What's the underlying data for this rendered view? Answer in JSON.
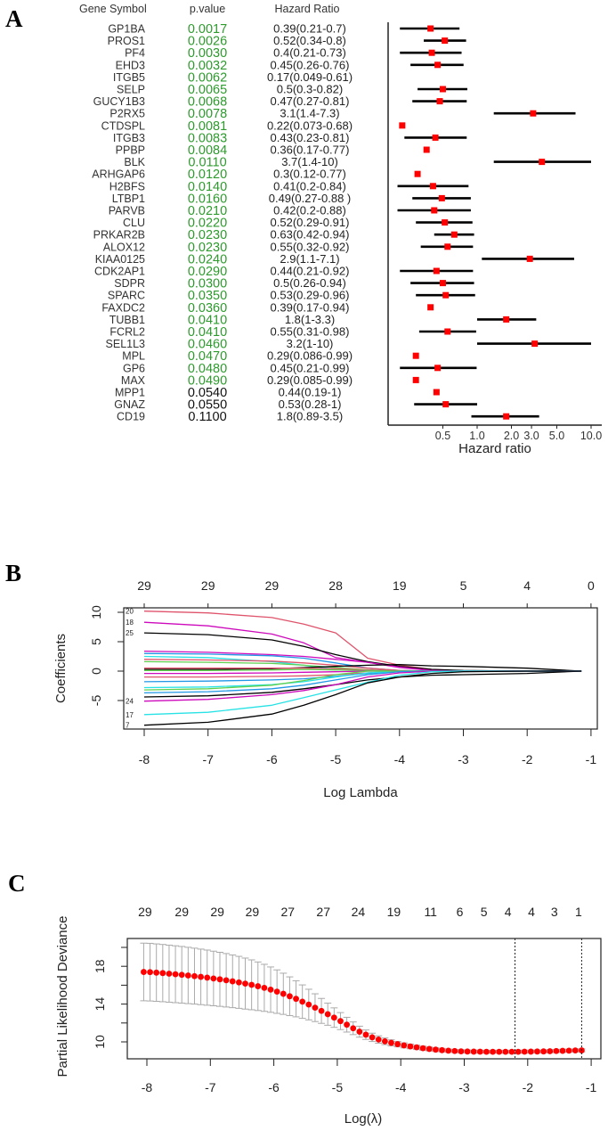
{
  "panels": {
    "a": "A",
    "b": "B",
    "c": "C"
  },
  "chart_data": [
    {
      "type": "forest",
      "panel": "A",
      "headers": {
        "gene": "Gene Symbol",
        "p": "p.value",
        "hr": "Hazard Ratio"
      },
      "xlabel": "Hazard ratio",
      "xscale": "log",
      "xticks": [
        "0.5",
        "1.0",
        "2.0",
        "3.0",
        "5.0",
        "10.0"
      ],
      "significant_color": "#2e9a2e",
      "marker_color": "#ff0000",
      "rows": [
        {
          "gene": "GP1BA",
          "p": "0.0017",
          "hr_text": "0.39(0.21-0.7)",
          "hr": 0.39,
          "lo": 0.21,
          "hi": 0.7
        },
        {
          "gene": "PROS1",
          "p": "0.0026",
          "hr_text": "0.52(0.34-0.8)",
          "hr": 0.52,
          "lo": 0.34,
          "hi": 0.8
        },
        {
          "gene": "PF4",
          "p": "0.0030",
          "hr_text": "0.4(0.21-0.73)",
          "hr": 0.4,
          "lo": 0.21,
          "hi": 0.73
        },
        {
          "gene": "EHD3",
          "p": "0.0032",
          "hr_text": "0.45(0.26-0.76)",
          "hr": 0.45,
          "lo": 0.26,
          "hi": 0.76
        },
        {
          "gene": "ITGB5",
          "p": "0.0062",
          "hr_text": "0.17(0.049-0.61)",
          "hr": 0.17,
          "lo": 0.049,
          "hi": 0.61
        },
        {
          "gene": "SELP",
          "p": "0.0065",
          "hr_text": "0.5(0.3-0.82)",
          "hr": 0.5,
          "lo": 0.3,
          "hi": 0.82
        },
        {
          "gene": "GUCY1B3",
          "p": "0.0068",
          "hr_text": "0.47(0.27-0.81)",
          "hr": 0.47,
          "lo": 0.27,
          "hi": 0.81
        },
        {
          "gene": "P2RX5",
          "p": "0.0078",
          "hr_text": "3.1(1.4-7.3)",
          "hr": 3.1,
          "lo": 1.4,
          "hi": 7.3
        },
        {
          "gene": "CTDSPL",
          "p": "0.0081",
          "hr_text": "0.22(0.073-0.68)",
          "hr": 0.22,
          "lo": 0.073,
          "hi": 0.68
        },
        {
          "gene": "ITGB3",
          "p": "0.0083",
          "hr_text": "0.43(0.23-0.81)",
          "hr": 0.43,
          "lo": 0.23,
          "hi": 0.81
        },
        {
          "gene": "PPBP",
          "p": "0.0084",
          "hr_text": "0.36(0.17-0.77)",
          "hr": 0.36,
          "lo": 0.17,
          "hi": 0.77
        },
        {
          "gene": "BLK",
          "p": "0.0110",
          "hr_text": "3.7(1.4-10)",
          "hr": 3.7,
          "lo": 1.4,
          "hi": 10
        },
        {
          "gene": "ARHGAP6",
          "p": "0.0120",
          "hr_text": "0.3(0.12-0.77)",
          "hr": 0.3,
          "lo": 0.12,
          "hi": 0.77
        },
        {
          "gene": "H2BFS",
          "p": "0.0140",
          "hr_text": "0.41(0.2-0.84)",
          "hr": 0.41,
          "lo": 0.2,
          "hi": 0.84
        },
        {
          "gene": "LTBP1",
          "p": "0.0160",
          "hr_text": "0.49(0.27-0.88 )",
          "hr": 0.49,
          "lo": 0.27,
          "hi": 0.88
        },
        {
          "gene": "PARVB",
          "p": "0.0210",
          "hr_text": "0.42(0.2-0.88)",
          "hr": 0.42,
          "lo": 0.2,
          "hi": 0.88
        },
        {
          "gene": "CLU",
          "p": "0.0220",
          "hr_text": "0.52(0.29-0.91)",
          "hr": 0.52,
          "lo": 0.29,
          "hi": 0.91
        },
        {
          "gene": "PRKAR2B",
          "p": "0.0230",
          "hr_text": "0.63(0.42-0.94)",
          "hr": 0.63,
          "lo": 0.42,
          "hi": 0.94
        },
        {
          "gene": "ALOX12",
          "p": "0.0230",
          "hr_text": "0.55(0.32-0.92)",
          "hr": 0.55,
          "lo": 0.32,
          "hi": 0.92
        },
        {
          "gene": "KIAA0125",
          "p": "0.0240",
          "hr_text": "2.9(1.1-7.1)",
          "hr": 2.9,
          "lo": 1.1,
          "hi": 7.1
        },
        {
          "gene": "CDK2AP1",
          "p": "0.0290",
          "hr_text": "0.44(0.21-0.92)",
          "hr": 0.44,
          "lo": 0.21,
          "hi": 0.92
        },
        {
          "gene": "SDPR",
          "p": "0.0300",
          "hr_text": "0.5(0.26-0.94)",
          "hr": 0.5,
          "lo": 0.26,
          "hi": 0.94
        },
        {
          "gene": "SPARC",
          "p": "0.0350",
          "hr_text": "0.53(0.29-0.96)",
          "hr": 0.53,
          "lo": 0.29,
          "hi": 0.96
        },
        {
          "gene": "FAXDC2",
          "p": "0.0360",
          "hr_text": "0.39(0.17-0.94)",
          "hr": 0.39,
          "lo": 0.17,
          "hi": 0.94
        },
        {
          "gene": "TUBB1",
          "p": "0.0410",
          "hr_text": "1.8(1-3.3)",
          "hr": 1.8,
          "lo": 1,
          "hi": 3.3
        },
        {
          "gene": "FCRL2",
          "p": "0.0410",
          "hr_text": "0.55(0.31-0.98)",
          "hr": 0.55,
          "lo": 0.31,
          "hi": 0.98
        },
        {
          "gene": "SEL1L3",
          "p": "0.0460",
          "hr_text": "3.2(1-10)",
          "hr": 3.2,
          "lo": 1,
          "hi": 10
        },
        {
          "gene": "MPL",
          "p": "0.0470",
          "hr_text": "0.29(0.086-0.99)",
          "hr": 0.29,
          "lo": 0.086,
          "hi": 0.99
        },
        {
          "gene": "GP6",
          "p": "0.0480",
          "hr_text": "0.45(0.21-0.99)",
          "hr": 0.45,
          "lo": 0.21,
          "hi": 0.99
        },
        {
          "gene": "MAX",
          "p": "0.0490",
          "hr_text": "0.29(0.085-0.99)",
          "hr": 0.29,
          "lo": 0.085,
          "hi": 0.99
        },
        {
          "gene": "MPP1",
          "p": "0.0540",
          "hr_text": "0.44(0.19-1)",
          "hr": 0.44,
          "lo": 0.19,
          "hi": 1
        },
        {
          "gene": "GNAZ",
          "p": "0.0550",
          "hr_text": "0.53(0.28-1)",
          "hr": 0.53,
          "lo": 0.28,
          "hi": 1
        },
        {
          "gene": "CD19",
          "p": "0.1100",
          "hr_text": "1.8(0.89-3.5)",
          "hr": 1.8,
          "lo": 0.89,
          "hi": 3.5
        }
      ]
    },
    {
      "type": "line",
      "panel": "B",
      "xlabel": "Log Lambda",
      "ylabel": "Coefficients",
      "xlim": [
        -8.3,
        -0.9
      ],
      "ylim": [
        -10.5,
        11
      ],
      "xticks": [
        "-8",
        "-7",
        "-6",
        "-5",
        "-4",
        "-3",
        "-2",
        "-1"
      ],
      "yticks": [
        "-5",
        "0",
        "5",
        "10"
      ],
      "top_axis": [
        "29",
        "29",
        "29",
        "28",
        "19",
        "5",
        "4",
        "0"
      ],
      "x": [
        -8,
        -7,
        -6,
        -5.5,
        -5,
        -4.5,
        -4,
        -3.5,
        -3,
        -2,
        -1.15
      ],
      "series": [
        {
          "label": "20",
          "color": "#df536b",
          "values": [
            10.2,
            9.9,
            9.1,
            8,
            6.5,
            2.2,
            1.0,
            0.3,
            0,
            0,
            0
          ]
        },
        {
          "label": "18",
          "color": "#cd0bbc",
          "values": [
            8.3,
            7.7,
            6.3,
            4.8,
            2.3,
            1.5,
            0.6,
            0.1,
            0,
            0,
            0
          ]
        },
        {
          "label": "25",
          "color": "#000000",
          "values": [
            6.5,
            6.2,
            5.3,
            4.2,
            2.8,
            1.6,
            0.8,
            0.3,
            0.1,
            0,
            0
          ]
        },
        {
          "label": "",
          "color": "#cd0bbc",
          "values": [
            3.4,
            3.2,
            2.8,
            2.5,
            2.0,
            1.5,
            0.7,
            0.1,
            0,
            0,
            0
          ]
        },
        {
          "label": "",
          "color": "#2297e6",
          "values": [
            3.0,
            2.9,
            2.6,
            2.2,
            1.4,
            0.5,
            0.1,
            0,
            0,
            0,
            0
          ]
        },
        {
          "label": "",
          "color": "#28e2e5",
          "values": [
            2.5,
            2.3,
            1.6,
            1.0,
            0.3,
            0,
            0,
            0,
            0,
            0,
            0
          ]
        },
        {
          "label": "",
          "color": "#df536b",
          "values": [
            2.0,
            1.9,
            1.7,
            1.4,
            1.0,
            0.5,
            0.1,
            0,
            0,
            0,
            0
          ]
        },
        {
          "label": "",
          "color": "#61d04f",
          "values": [
            1.6,
            1.5,
            1.3,
            1.0,
            0.6,
            0.2,
            0,
            0,
            0,
            0,
            0
          ]
        },
        {
          "label": "",
          "color": "#000000",
          "values": [
            0.3,
            0.3,
            0.4,
            0.6,
            0.8,
            1.0,
            1.1,
            0.9,
            0.8,
            0.5,
            0
          ]
        },
        {
          "label": "",
          "color": "#df536b",
          "values": [
            0.5,
            0.5,
            0.5,
            0.5,
            0.4,
            0.2,
            0,
            0,
            0,
            0,
            0
          ]
        },
        {
          "label": "",
          "color": "#61d04f",
          "values": [
            0.1,
            0.1,
            0.2,
            0.3,
            0.2,
            0.1,
            0,
            0,
            0,
            0,
            0
          ]
        },
        {
          "label": "",
          "color": "#cd0bbc",
          "values": [
            -0.4,
            -0.4,
            -0.3,
            -0.2,
            -0.1,
            0,
            0,
            0,
            0,
            0,
            0
          ]
        },
        {
          "label": "",
          "color": "#df536b",
          "values": [
            -1,
            -1,
            -0.9,
            -0.8,
            -0.6,
            -0.3,
            0,
            0,
            0,
            0,
            0
          ]
        },
        {
          "label": "",
          "color": "#2297e6",
          "values": [
            -1.8,
            -1.7,
            -1.5,
            -1.3,
            -0.9,
            -0.4,
            0,
            0,
            0,
            0,
            0
          ]
        },
        {
          "label": "",
          "color": "#28e2e5",
          "values": [
            -2.8,
            -2.7,
            -2.3,
            -1.8,
            -1.0,
            -0.3,
            0,
            0,
            0,
            0,
            0
          ]
        },
        {
          "label": "",
          "color": "#61d04f",
          "values": [
            -3.2,
            -3.0,
            -2.4,
            -1.6,
            -0.6,
            0,
            0,
            0,
            0,
            0,
            0
          ]
        },
        {
          "label": "",
          "color": "#2297e6",
          "values": [
            -3.7,
            -3.5,
            -3.0,
            -2.4,
            -1.5,
            -0.6,
            -0.1,
            0,
            0,
            0,
            0
          ]
        },
        {
          "label": "",
          "color": "#000000",
          "values": [
            -4.4,
            -4.2,
            -3.6,
            -3,
            -2.3,
            -1.5,
            -1.0,
            -0.7,
            -0.6,
            -0.4,
            0
          ]
        },
        {
          "label": "24",
          "color": "#cd0bbc",
          "values": [
            -5.1,
            -4.8,
            -4,
            -3.3,
            -2.3,
            -1,
            -0.3,
            0,
            0,
            0,
            0
          ]
        },
        {
          "label": "17",
          "color": "#28e2e5",
          "values": [
            -7.4,
            -7,
            -5.8,
            -4.5,
            -3.2,
            -1.9,
            -0.7,
            -0.1,
            0,
            0,
            0
          ]
        },
        {
          "label": "7",
          "color": "#000000",
          "values": [
            -9.2,
            -8.7,
            -7.3,
            -5.8,
            -4.0,
            -2.0,
            -1.0,
            -0.4,
            -0.1,
            0,
            0
          ]
        }
      ]
    },
    {
      "type": "scatter",
      "panel": "C",
      "xlabel": "Log(λ)",
      "ylabel": "Partial Likelihood Deviance",
      "xticks": [
        "-8",
        "-7",
        "-6",
        "-5",
        "-4",
        "-3",
        "-2",
        "-1"
      ],
      "yticks": [
        "10",
        "14",
        "18"
      ],
      "minor_yticks": [
        12,
        16,
        20
      ],
      "x_start": -8.05,
      "x_step": 0.1,
      "mean": [
        17.4,
        17.38,
        17.33,
        17.28,
        17.22,
        17.16,
        17.1,
        17.03,
        16.96,
        16.88,
        16.8,
        16.71,
        16.62,
        16.52,
        16.41,
        16.3,
        16.17,
        16.04,
        15.89,
        15.72,
        15.53,
        15.32,
        15.09,
        14.83,
        14.56,
        14.26,
        13.95,
        13.62,
        13.28,
        12.93,
        12.57,
        12.2,
        11.82,
        11.44,
        11.08,
        10.76,
        10.48,
        10.25,
        10.06,
        9.9,
        9.76,
        9.63,
        9.52,
        9.42,
        9.33,
        9.25,
        9.18,
        9.12,
        9.07,
        9.03,
        9.0,
        8.98,
        8.97,
        8.96,
        8.95,
        8.95,
        8.95,
        8.95,
        8.95,
        8.95,
        8.96,
        8.97,
        8.98,
        8.99,
        9.01,
        9.03,
        9.05,
        9.07,
        9.09,
        9.1
      ],
      "se": [
        3.05,
        3.05,
        3.04,
        3.03,
        3.02,
        3.01,
        3.0,
        2.98,
        2.96,
        2.94,
        2.92,
        2.89,
        2.86,
        2.83,
        2.79,
        2.75,
        2.7,
        2.64,
        2.57,
        2.49,
        2.4,
        2.3,
        2.18,
        2.05,
        1.91,
        1.77,
        1.62,
        1.47,
        1.32,
        1.17,
        1.03,
        0.9,
        0.78,
        0.67,
        0.58,
        0.5,
        0.44,
        0.39,
        0.35,
        0.32,
        0.29,
        0.27,
        0.25,
        0.23,
        0.22,
        0.21,
        0.2,
        0.19,
        0.18,
        0.17,
        0.17,
        0.16,
        0.16,
        0.16,
        0.16,
        0.16,
        0.16,
        0.16,
        0.16,
        0.16,
        0.16,
        0.16,
        0.16,
        0.16,
        0.16,
        0.16,
        0.16,
        0.16,
        0.16,
        0.16
      ],
      "vlines": [
        -2.2,
        -1.15
      ],
      "top_axis": {
        "labels": [
          "29",
          "29",
          "29",
          "29",
          "27",
          "27",
          "24",
          "19",
          "11",
          "6",
          "5",
          "4",
          "4",
          "3",
          "1"
        ],
        "at": [
          -8.03,
          -7.45,
          -6.89,
          -6.34,
          -5.78,
          -5.22,
          -4.67,
          -4.11,
          -3.53,
          -3.07,
          -2.69,
          -2.31,
          -1.94,
          -1.58,
          -1.2
        ]
      }
    }
  ]
}
